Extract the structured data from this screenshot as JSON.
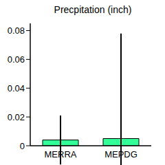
{
  "chart_data": {
    "type": "bar",
    "title": "Precpitation (inch)",
    "categories": [
      "MERRA",
      "MEPDG"
    ],
    "values": [
      0.004,
      0.005
    ],
    "errors": [
      0.017,
      0.073
    ],
    "color": "#33ff99",
    "ylim": [
      0,
      0.085
    ],
    "yticks": [
      0,
      0.02,
      0.04,
      0.06,
      0.08
    ],
    "grid": false
  }
}
